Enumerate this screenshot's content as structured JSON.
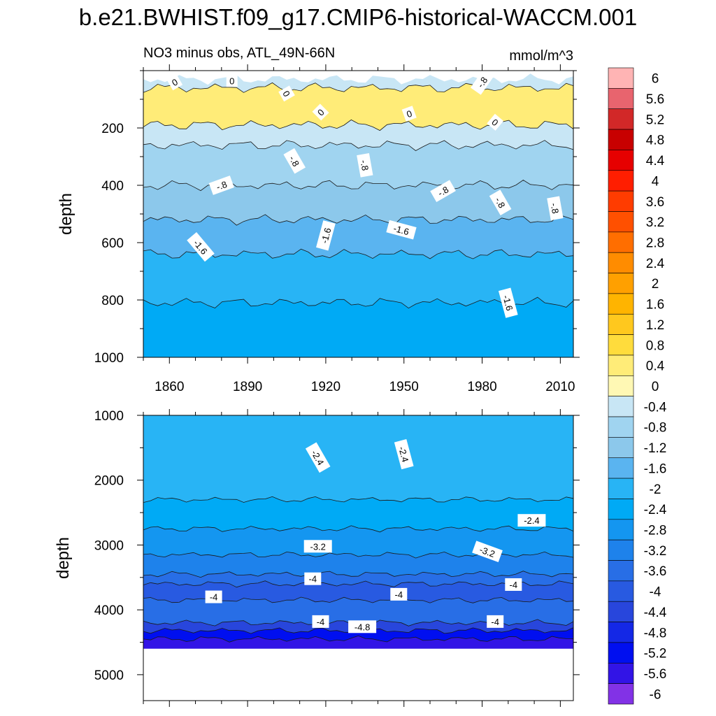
{
  "title": "b.e21.BWHIST.f09_g17.CMIP6-historical-WACCM.001",
  "chart_data": [
    {
      "type": "contour",
      "panel": "upper",
      "subtitle_left": "NO3 minus obs, ATL_49N-66N",
      "subtitle_right": "mmol/m^3",
      "ylabel": "depth",
      "xlabel": "",
      "x_range": [
        1850,
        2015
      ],
      "y_range": [
        0,
        1000
      ],
      "y_inverted": true,
      "x_ticks": [
        "1860",
        "1890",
        "1920",
        "1950",
        "1980",
        "2010"
      ],
      "x_tick_values": [
        1860,
        1890,
        1920,
        1950,
        1980,
        2010
      ],
      "y_ticks": [
        "200",
        "400",
        "600",
        "800",
        "1000"
      ],
      "y_tick_values": [
        200,
        400,
        600,
        800,
        1000
      ],
      "contour_bands": [
        {
          "top": 30,
          "bottom": 60,
          "value": -0.4
        },
        {
          "top": 60,
          "bottom": 190,
          "value": 0.4
        },
        {
          "top": 190,
          "bottom": 260,
          "value": -0.4
        },
        {
          "top": 260,
          "bottom": 400,
          "value": -0.8
        },
        {
          "top": 400,
          "bottom": 520,
          "value": -1.2
        },
        {
          "top": 520,
          "bottom": 640,
          "value": -1.6
        },
        {
          "top": 640,
          "bottom": 810,
          "value": -2.0
        },
        {
          "top": 810,
          "bottom": 1000,
          "value": -2.4
        }
      ],
      "contour_labels": [
        {
          "text": "0",
          "x": 1862,
          "y": 40,
          "angle": -30
        },
        {
          "text": "0",
          "x": 1884,
          "y": 35,
          "angle": 0
        },
        {
          "text": "0",
          "x": 1905,
          "y": 80,
          "angle": 60
        },
        {
          "text": "0",
          "x": 1918,
          "y": 145,
          "angle": -45
        },
        {
          "text": "0",
          "x": 1952,
          "y": 150,
          "angle": -20
        },
        {
          "text": "-.8",
          "x": 1980,
          "y": 40,
          "angle": -55
        },
        {
          "text": "0",
          "x": 1985,
          "y": 180,
          "angle": 40
        },
        {
          "text": "-.8",
          "x": 1908,
          "y": 315,
          "angle": 60
        },
        {
          "text": "-.8",
          "x": 1880,
          "y": 400,
          "angle": -20
        },
        {
          "text": "-.8",
          "x": 1935,
          "y": 330,
          "angle": 80
        },
        {
          "text": "-.8",
          "x": 1965,
          "y": 420,
          "angle": -30
        },
        {
          "text": "-.8",
          "x": 1987,
          "y": 460,
          "angle": 60
        },
        {
          "text": "-.8",
          "x": 2008,
          "y": 480,
          "angle": 80
        },
        {
          "text": "-1.6",
          "x": 1872,
          "y": 615,
          "angle": 50
        },
        {
          "text": "-1.6",
          "x": 1920,
          "y": 575,
          "angle": -75
        },
        {
          "text": "-1.6",
          "x": 1949,
          "y": 555,
          "angle": 15
        },
        {
          "text": "-1.6",
          "x": 1990,
          "y": 810,
          "angle": 75
        }
      ]
    },
    {
      "type": "contour",
      "panel": "lower",
      "ylabel": "depth",
      "xlabel": "",
      "x_range": [
        1850,
        2015
      ],
      "y_range": [
        1000,
        5400
      ],
      "y_inverted": true,
      "data_max_depth": 4600,
      "y_ticks": [
        "1000",
        "2000",
        "3000",
        "4000",
        "5000"
      ],
      "y_tick_values": [
        1000,
        2000,
        3000,
        4000,
        5000
      ],
      "contour_bands": [
        {
          "top": 1000,
          "bottom": 2300,
          "value": -2.0
        },
        {
          "top": 2300,
          "bottom": 2750,
          "value": -2.4
        },
        {
          "top": 2750,
          "bottom": 3150,
          "value": -2.8
        },
        {
          "top": 3150,
          "bottom": 3450,
          "value": -3.2
        },
        {
          "top": 3450,
          "bottom": 3600,
          "value": -3.6
        },
        {
          "top": 3600,
          "bottom": 3850,
          "value": -4.0
        },
        {
          "top": 3850,
          "bottom": 4200,
          "value": -3.6
        },
        {
          "top": 4200,
          "bottom": 4320,
          "value": -4.4
        },
        {
          "top": 4320,
          "bottom": 4450,
          "value": -5.2
        },
        {
          "top": 4450,
          "bottom": 4600,
          "value": -5.6
        }
      ],
      "contour_labels": [
        {
          "text": "-2.4",
          "x": 1917,
          "y": 1650,
          "angle": 60
        },
        {
          "text": "-2.4",
          "x": 1950,
          "y": 1600,
          "angle": 75
        },
        {
          "text": "-2.4",
          "x": 1999,
          "y": 2620,
          "angle": 0
        },
        {
          "text": "-3.2",
          "x": 1917,
          "y": 3020,
          "angle": 0
        },
        {
          "text": "-3.2",
          "x": 1982,
          "y": 3100,
          "angle": 20
        },
        {
          "text": "-4",
          "x": 1877,
          "y": 3800,
          "angle": 0
        },
        {
          "text": "-4",
          "x": 1915,
          "y": 3520,
          "angle": 0
        },
        {
          "text": "-4",
          "x": 1948,
          "y": 3760,
          "angle": 0
        },
        {
          "text": "-4",
          "x": 1992,
          "y": 3610,
          "angle": 0
        },
        {
          "text": "-4",
          "x": 1918,
          "y": 4180,
          "angle": 0
        },
        {
          "text": "-4.8",
          "x": 1934,
          "y": 4260,
          "angle": 0
        },
        {
          "text": "-4",
          "x": 1985,
          "y": 4180,
          "angle": 0
        }
      ]
    }
  ],
  "colorbar": {
    "labels": [
      "6",
      "5.6",
      "5.2",
      "4.8",
      "4.4",
      "4",
      "3.6",
      "3.2",
      "2.8",
      "2.4",
      "2",
      "1.6",
      "1.2",
      "0.8",
      "0.4",
      "0",
      "-0.4",
      "-0.8",
      "-1.2",
      "-1.6",
      "-2",
      "-2.4",
      "-2.8",
      "-3.2",
      "-3.6",
      "-4",
      "-4.4",
      "-4.8",
      "-5.2",
      "-5.6",
      "-6"
    ],
    "colors": [
      "#ffb4b4",
      "#e8646e",
      "#d22828",
      "#c80000",
      "#e60000",
      "#ff1e00",
      "#ff3c00",
      "#ff5000",
      "#ff6e00",
      "#ff8c00",
      "#ffa000",
      "#ffb400",
      "#ffc81e",
      "#ffdc3c",
      "#ffec78",
      "#fff8b4",
      "#c8e6f5",
      "#a0d4f0",
      "#8cc8eb",
      "#5ab4f0",
      "#28b4f5",
      "#00aaf5",
      "#1496f0",
      "#1e82eb",
      "#286ee6",
      "#285ae1",
      "#2846dc",
      "#1428e6",
      "#000ff0",
      "#3214e6",
      "#8232e6"
    ]
  }
}
